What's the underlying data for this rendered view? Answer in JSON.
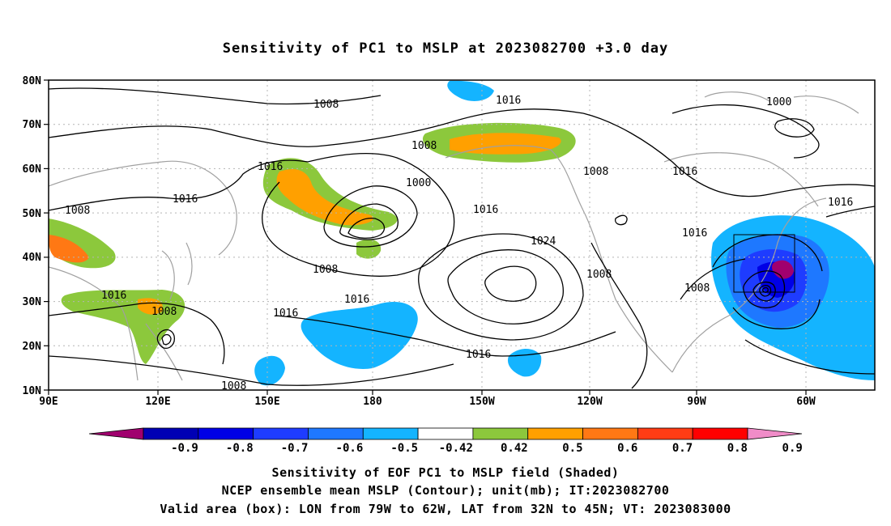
{
  "title": "Sensitivity of PC1 to MSLP at 2023082700 +3.0 day",
  "axes": {
    "lon_ticks": [
      "90E",
      "120E",
      "150E",
      "180",
      "150W",
      "120W",
      "90W",
      "60W"
    ],
    "lat_ticks": [
      "80N",
      "70N",
      "60N",
      "50N",
      "40N",
      "30N",
      "20N",
      "10N"
    ]
  },
  "contour_labels": [
    "1008",
    "1016",
    "1000",
    "1008",
    "1016",
    "1008",
    "1016",
    "1016",
    "1000",
    "1016",
    "1024",
    "1008",
    "1008",
    "1016",
    "1016",
    "1008",
    "1008",
    "1016",
    "1008",
    "1016",
    "1016"
  ],
  "colorbar": {
    "labels": [
      "-0.9",
      "-0.8",
      "-0.7",
      "-0.6",
      "-0.5",
      "-0.42",
      "0.42",
      "0.5",
      "0.6",
      "0.7",
      "0.8",
      "0.9"
    ],
    "colors": [
      "#a0006e",
      "#0000b4",
      "#0000e6",
      "#1e3cff",
      "#1e78ff",
      "#14b4ff",
      "#ffffff",
      "#8cc83c",
      "#ffa000",
      "#ff7814",
      "#ff3c14",
      "#ff0000",
      "#f08cc8"
    ]
  },
  "captions": {
    "line1": "Sensitivity of EOF PC1 to MSLP field (Shaded)",
    "line2": "NCEP ensemble mean MSLP (Contour); unit(mb); IT:2023082700",
    "line3": "Valid area (box): LON from 79W to 62W, LAT from 32N to 45N; VT: 2023083000"
  },
  "valid_box": {
    "lon_min": -79,
    "lon_max": -62,
    "lat_min": 32,
    "lat_max": 45
  }
}
